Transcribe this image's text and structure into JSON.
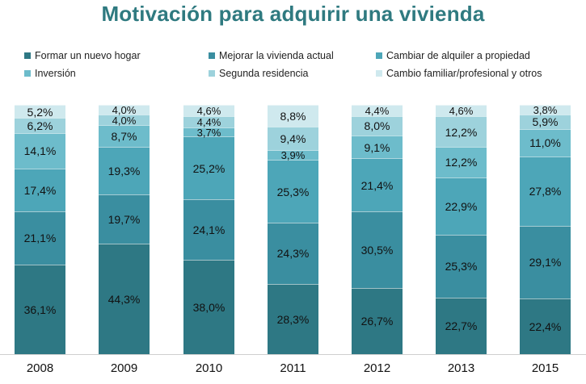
{
  "chart_data": {
    "type": "bar",
    "stacked": true,
    "title": "Motivación para adquirir una vivienda",
    "xlabel": "",
    "ylabel": "",
    "ylim": [
      0,
      100
    ],
    "categories": [
      "2008",
      "2009",
      "2010",
      "2011",
      "2012",
      "2013",
      "2015"
    ],
    "series": [
      {
        "name": "Formar un nuevo hogar",
        "color": "#2e7884",
        "values": [
          36.1,
          44.3,
          38.0,
          28.3,
          26.7,
          22.7,
          22.4
        ],
        "labels": [
          "36,1%",
          "44,3%",
          "38,0%",
          "28,3%",
          "26,7%",
          "22,7%",
          "22,4%"
        ]
      },
      {
        "name": "Mejorar la vivienda actual",
        "color": "#3a8ea0",
        "values": [
          21.1,
          19.7,
          24.1,
          24.3,
          30.5,
          25.3,
          29.1
        ],
        "labels": [
          "21,1%",
          "19,7%",
          "24,1%",
          "24,3%",
          "30,5%",
          "25,3%",
          "29,1%"
        ]
      },
      {
        "name": "Cambiar de alquiler a propiedad",
        "color": "#4da6b8",
        "values": [
          17.4,
          19.3,
          25.2,
          25.3,
          21.4,
          22.9,
          27.8
        ],
        "labels": [
          "17,4%",
          "19,3%",
          "25,2%",
          "25,3%",
          "21,4%",
          "22,9%",
          "27,8%"
        ]
      },
      {
        "name": "Inversión",
        "color": "#6dbccb",
        "values": [
          14.1,
          8.7,
          3.7,
          3.9,
          9.1,
          12.2,
          11.0
        ],
        "labels": [
          "14,1%",
          "8,7%",
          "3,7%",
          "3,9%",
          "9,1%",
          "12,2%",
          "11,0%"
        ]
      },
      {
        "name": "Segunda residencia",
        "color": "#9dd2dc",
        "values": [
          6.2,
          4.0,
          4.4,
          9.4,
          8.0,
          12.2,
          5.9
        ],
        "labels": [
          "6,2%",
          "4,0%",
          "4,4%",
          "9,4%",
          "8,0%",
          "12,2%",
          "5,9%"
        ]
      },
      {
        "name": "Cambio familiar/profesional y otros",
        "color": "#cfe9ee",
        "values": [
          5.2,
          4.0,
          4.6,
          8.8,
          4.4,
          4.6,
          3.8
        ],
        "labels": [
          "5,2%",
          "4,0%",
          "4,6%",
          "8,8%",
          "4,4%",
          "4,6%",
          "3,8%"
        ]
      }
    ]
  }
}
